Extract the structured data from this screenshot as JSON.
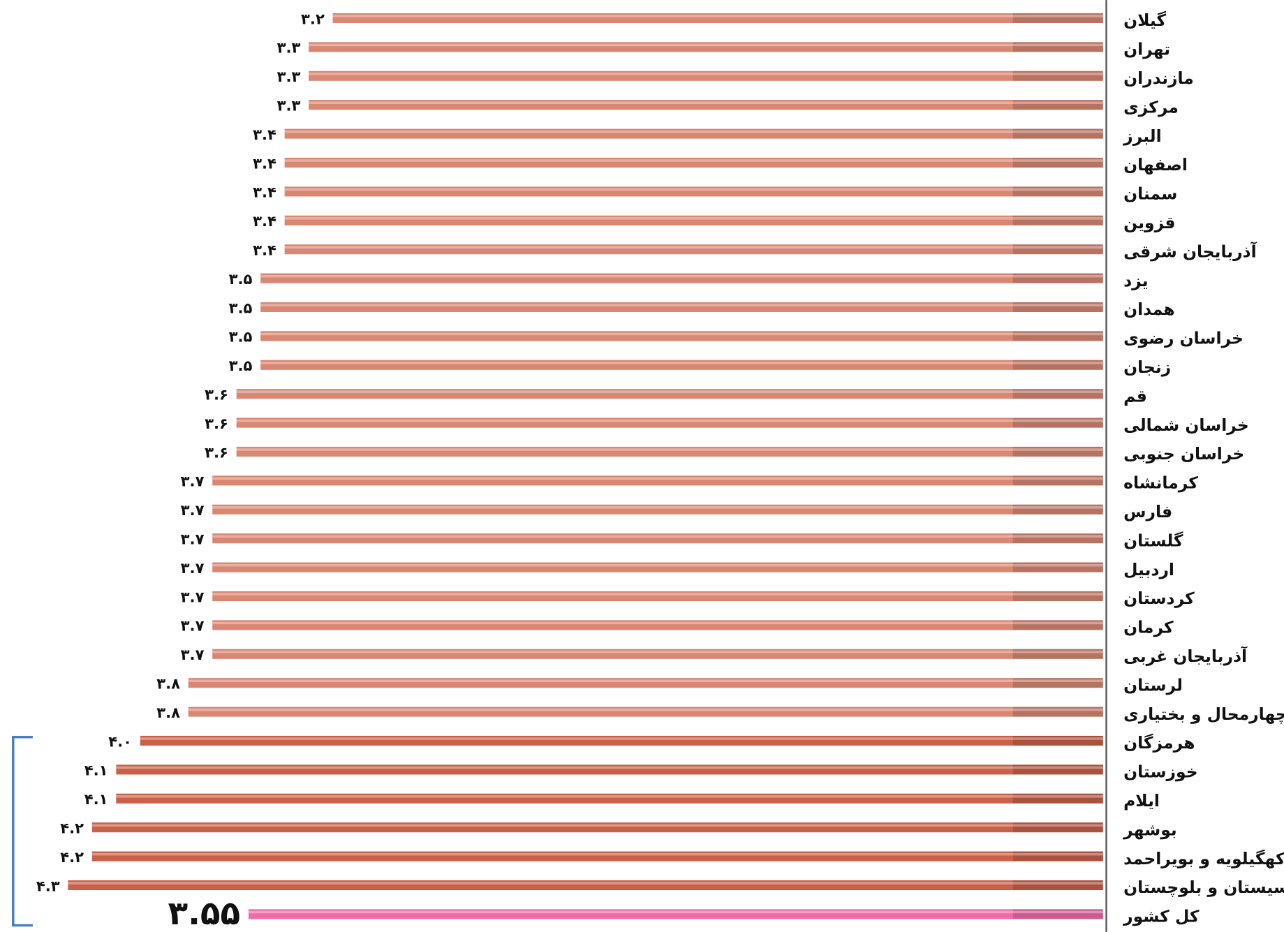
{
  "chart_data": {
    "type": "bar",
    "orientation": "horizontal",
    "categories": [
      "گیلان",
      "تهران",
      "مازندران",
      "مرکزی",
      "البرز",
      "اصفهان",
      "سمنان",
      "قزوین",
      "آذربایجان شرقی",
      "یزد",
      "همدان",
      "خراسان رضوی",
      "زنجان",
      "قم",
      "خراسان شمالی",
      "خراسان جنوبی",
      "کرمانشاه",
      "فارس",
      "گلستان",
      "اردبیل",
      "کردستان",
      "کرمان",
      "آذربایجان غربی",
      "لرستان",
      "چهارمحال و بختیاری",
      "هرمزگان",
      "خوزستان",
      "ایلام",
      "بوشهر",
      "کهگیلویه و بویراحمد",
      "سیستان و بلوچستان",
      "کل کشور"
    ],
    "values": [
      3.2,
      3.3,
      3.3,
      3.3,
      3.4,
      3.4,
      3.4,
      3.4,
      3.4,
      3.5,
      3.5,
      3.5,
      3.5,
      3.6,
      3.6,
      3.6,
      3.7,
      3.7,
      3.7,
      3.7,
      3.7,
      3.7,
      3.7,
      3.8,
      3.8,
      4.0,
      4.1,
      4.1,
      4.2,
      4.2,
      4.3,
      3.55
    ],
    "value_labels": [
      "۳.۲",
      "۳.۳",
      "۳.۳",
      "۳.۳",
      "۳.۴",
      "۳.۴",
      "۳.۴",
      "۳.۴",
      "۳.۴",
      "۳.۵",
      "۳.۵",
      "۳.۵",
      "۳.۵",
      "۳.۶",
      "۳.۶",
      "۳.۶",
      "۳.۷",
      "۳.۷",
      "۳.۷",
      "۳.۷",
      "۳.۷",
      "۳.۷",
      "۳.۷",
      "۳.۸",
      "۳.۸",
      "۴.۰",
      "۴.۱",
      "۴.۱",
      "۴.۲",
      "۴.۲",
      "۴.۳",
      "۳.۵۵"
    ],
    "colors": [
      "#d98672",
      "#d98672",
      "#d98672",
      "#d98672",
      "#d98672",
      "#d98672",
      "#d98672",
      "#d98672",
      "#d98672",
      "#d98672",
      "#d98672",
      "#d98672",
      "#d98672",
      "#d98672",
      "#d98672",
      "#d98672",
      "#d98672",
      "#d98672",
      "#d98672",
      "#d98672",
      "#d98672",
      "#d98672",
      "#d98672",
      "#d98672",
      "#d98672",
      "#c9614a",
      "#c9614a",
      "#c9614a",
      "#c9614a",
      "#c9614a",
      "#c9614a",
      "#f06aa8"
    ]
  }
}
